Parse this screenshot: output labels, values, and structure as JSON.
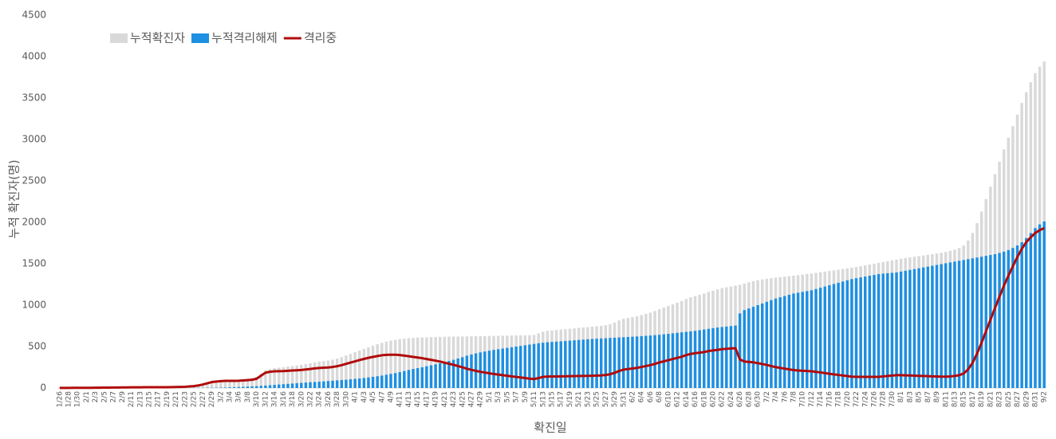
{
  "chart_data": {
    "type": "bar",
    "xlabel": "확진일",
    "ylabel": "누적 확진자(명)",
    "categories": [
      "1/26",
      null,
      "1/28",
      null,
      "1/30",
      null,
      "2/1",
      null,
      "2/3",
      null,
      "2/5",
      null,
      "2/7",
      null,
      "2/9",
      null,
      "2/11",
      null,
      "2/13",
      null,
      "2/15",
      null,
      "2/17",
      null,
      "2/19",
      null,
      "2/21",
      null,
      "2/23",
      null,
      "2/25",
      null,
      "2/27",
      null,
      "2/29",
      null,
      "3/2",
      null,
      "3/4",
      null,
      "3/6",
      null,
      "3/8",
      null,
      "3/10",
      null,
      "3/12",
      null,
      "3/14",
      null,
      "3/16",
      null,
      "3/18",
      null,
      "3/20",
      null,
      "3/22",
      null,
      "3/24",
      null,
      "3/26",
      null,
      "3/28",
      null,
      "3/30",
      null,
      "4/1",
      null,
      "4/3",
      null,
      "4/5",
      null,
      "4/7",
      null,
      "4/9",
      null,
      "4/11",
      null,
      "4/13",
      null,
      "4/15",
      null,
      "4/17",
      null,
      "4/19",
      null,
      "4/21",
      null,
      "4/23",
      null,
      "4/25",
      null,
      "4/27",
      null,
      "4/29",
      null,
      "5/1",
      null,
      "5/3",
      null,
      "5/5",
      null,
      "5/7",
      null,
      "5/9",
      null,
      "5/11",
      null,
      "5/13",
      null,
      "5/15",
      null,
      "5/17",
      null,
      "5/19",
      null,
      "5/21",
      null,
      "5/23",
      null,
      "5/25",
      null,
      "5/27",
      null,
      "5/29",
      null,
      "5/31",
      null,
      "6/2",
      null,
      "6/4",
      null,
      "6/6",
      null,
      "6/8",
      null,
      "6/10",
      null,
      "6/12",
      null,
      "6/14",
      null,
      "6/16",
      null,
      "6/18",
      null,
      "6/20",
      null,
      "6/22",
      null,
      "6/24",
      null,
      "6/26",
      null,
      "6/28",
      null,
      "6/30",
      null,
      "7/2",
      null,
      "7/4",
      null,
      "7/6",
      null,
      "7/8",
      null,
      "7/10",
      null,
      "7/12",
      null,
      "7/14",
      null,
      "7/16",
      null,
      "7/18",
      null,
      "7/20",
      null,
      "7/22",
      null,
      "7/24",
      null,
      "7/26",
      null,
      "7/28",
      null,
      "7/30",
      null,
      "8/1",
      null,
      "8/3",
      null,
      "8/5",
      null,
      "8/7",
      null,
      "8/9",
      null,
      "8/11",
      null,
      "8/13",
      null,
      "8/15",
      null,
      "8/17",
      null,
      "8/19",
      null,
      "8/21",
      null,
      "8/23",
      null,
      "8/25",
      null,
      "8/27",
      null,
      "8/29",
      null,
      "8/31",
      null,
      "9/2"
    ],
    "series": [
      {
        "name": "누적확진자",
        "type": "bar",
        "color": "#d9d9d9",
        "values": [
          1,
          1,
          1,
          2,
          2,
          3,
          3,
          3,
          4,
          4,
          5,
          5,
          6,
          6,
          7,
          7,
          8,
          8,
          8,
          9,
          9,
          9,
          10,
          10,
          10,
          11,
          12,
          14,
          16,
          20,
          25,
          33,
          45,
          60,
          75,
          82,
          88,
          92,
          95,
          97,
          100,
          105,
          112,
          120,
          135,
          175,
          215,
          230,
          240,
          245,
          250,
          258,
          265,
          272,
          280,
          290,
          300,
          310,
          318,
          325,
          332,
          342,
          355,
          372,
          392,
          412,
          432,
          452,
          472,
          492,
          510,
          528,
          545,
          560,
          572,
          582,
          590,
          596,
          601,
          605,
          608,
          610,
          612,
          614,
          616,
          617,
          618,
          619,
          620,
          621,
          622,
          623,
          624,
          625,
          626,
          627,
          628,
          629,
          630,
          631,
          632,
          633,
          634,
          635,
          636,
          637,
          640,
          660,
          680,
          690,
          695,
          700,
          705,
          710,
          715,
          720,
          725,
          730,
          735,
          740,
          745,
          750,
          758,
          770,
          790,
          815,
          835,
          845,
          855,
          865,
          880,
          895,
          910,
          930,
          950,
          970,
          990,
          1010,
          1030,
          1050,
          1075,
          1095,
          1110,
          1125,
          1140,
          1160,
          1175,
          1190,
          1205,
          1215,
          1225,
          1235,
          1245,
          1260,
          1275,
          1290,
          1300,
          1310,
          1318,
          1325,
          1332,
          1338,
          1344,
          1350,
          1356,
          1362,
          1368,
          1375,
          1382,
          1390,
          1398,
          1405,
          1412,
          1420,
          1428,
          1436,
          1444,
          1452,
          1460,
          1470,
          1480,
          1490,
          1500,
          1510,
          1520,
          1530,
          1540,
          1550,
          1560,
          1568,
          1576,
          1584,
          1592,
          1600,
          1608,
          1616,
          1624,
          1632,
          1642,
          1655,
          1670,
          1690,
          1720,
          1780,
          1870,
          1990,
          2130,
          2280,
          2430,
          2580,
          2730,
          2880,
          3020,
          3160,
          3300,
          3440,
          3570,
          3690,
          3800,
          3880,
          3940
        ]
      },
      {
        "name": "누적격리해제",
        "type": "bar",
        "color": "#1e8fe1",
        "values": [
          0,
          0,
          0,
          0,
          0,
          0,
          0,
          0,
          0,
          0,
          0,
          0,
          0,
          0,
          0,
          0,
          0,
          0,
          0,
          0,
          0,
          0,
          0,
          0,
          0,
          0,
          0,
          1,
          1,
          1,
          2,
          2,
          2,
          3,
          3,
          4,
          5,
          6,
          8,
          10,
          12,
          14,
          17,
          20,
          23,
          26,
          30,
          34,
          38,
          42,
          46,
          50,
          54,
          58,
          62,
          66,
          70,
          73,
          76,
          80,
          84,
          88,
          92,
          96,
          100,
          105,
          110,
          115,
          121,
          128,
          135,
          142,
          150,
          160,
          170,
          180,
          192,
          205,
          218,
          230,
          240,
          250,
          262,
          274,
          286,
          298,
          312,
          326,
          340,
          356,
          372,
          390,
          405,
          418,
          430,
          440,
          450,
          460,
          468,
          476,
          484,
          492,
          500,
          508,
          516,
          524,
          532,
          540,
          546,
          552,
          556,
          560,
          564,
          568,
          572,
          576,
          580,
          584,
          588,
          592,
          595,
          598,
          601,
          604,
          607,
          610,
          613,
          616,
          619,
          622,
          626,
          630,
          634,
          638,
          642,
          648,
          654,
          660,
          666,
          672,
          678,
          684,
          690,
          698,
          706,
          714,
          722,
          730,
          736,
          742,
          748,
          754,
          900,
          940,
          960,
          980,
          1000,
          1020,
          1040,
          1060,
          1080,
          1095,
          1110,
          1125,
          1140,
          1150,
          1160,
          1170,
          1180,
          1195,
          1210,
          1225,
          1240,
          1255,
          1270,
          1285,
          1300,
          1315,
          1325,
          1335,
          1345,
          1355,
          1365,
          1375,
          1380,
          1385,
          1390,
          1395,
          1405,
          1415,
          1425,
          1435,
          1445,
          1455,
          1465,
          1475,
          1485,
          1495,
          1505,
          1515,
          1525,
          1535,
          1545,
          1555,
          1565,
          1575,
          1585,
          1595,
          1605,
          1615,
          1630,
          1645,
          1665,
          1690,
          1720,
          1760,
          1810,
          1870,
          1930,
          1975,
          2010
        ]
      },
      {
        "name": "격리중",
        "type": "line",
        "color": "#b00b0b",
        "values": [
          1,
          1,
          1,
          2,
          2,
          3,
          3,
          3,
          4,
          4,
          5,
          5,
          6,
          6,
          7,
          7,
          8,
          8,
          8,
          9,
          9,
          9,
          10,
          10,
          10,
          11,
          12,
          13,
          15,
          19,
          23,
          31,
          43,
          57,
          72,
          78,
          83,
          86,
          87,
          87,
          88,
          91,
          95,
          100,
          112,
          149,
          185,
          196,
          202,
          203,
          204,
          208,
          211,
          214,
          218,
          224,
          230,
          237,
          242,
          245,
          248,
          254,
          263,
          276,
          292,
          307,
          322,
          337,
          351,
          364,
          375,
          386,
          395,
          400,
          402,
          402,
          398,
          391,
          383,
          375,
          368,
          360,
          350,
          340,
          330,
          319,
          306,
          293,
          280,
          265,
          250,
          233,
          219,
          207,
          196,
          187,
          178,
          169,
          162,
          155,
          148,
          141,
          134,
          127,
          120,
          113,
          108,
          120,
          134,
          138,
          139,
          140,
          141,
          142,
          143,
          144,
          145,
          146,
          147,
          148,
          150,
          152,
          157,
          166,
          183,
          205,
          222,
          229,
          236,
          243,
          254,
          265,
          276,
          292,
          308,
          322,
          336,
          350,
          364,
          378,
          397,
          411,
          420,
          427,
          434,
          446,
          453,
          460,
          469,
          473,
          477,
          481,
          345,
          320,
          315,
          310,
          300,
          290,
          278,
          265,
          252,
          243,
          234,
          225,
          216,
          212,
          208,
          205,
          202,
          195,
          188,
          180,
          172,
          165,
          158,
          151,
          144,
          137,
          135,
          135,
          135,
          135,
          135,
          135,
          140,
          145,
          150,
          155,
          155,
          153,
          151,
          149,
          147,
          145,
          143,
          141,
          139,
          137,
          137,
          140,
          145,
          155,
          175,
          225,
          305,
          415,
          545,
          685,
          825,
          965,
          1100,
          1235,
          1355,
          1470,
          1580,
          1680,
          1760,
          1820,
          1870,
          1905,
          1930
        ]
      }
    ],
    "ylim": [
      0,
      4500
    ],
    "yticks": [
      0,
      500,
      1000,
      1500,
      2000,
      2500,
      3000,
      3500,
      4000,
      4500
    ],
    "legend": "top-left"
  }
}
